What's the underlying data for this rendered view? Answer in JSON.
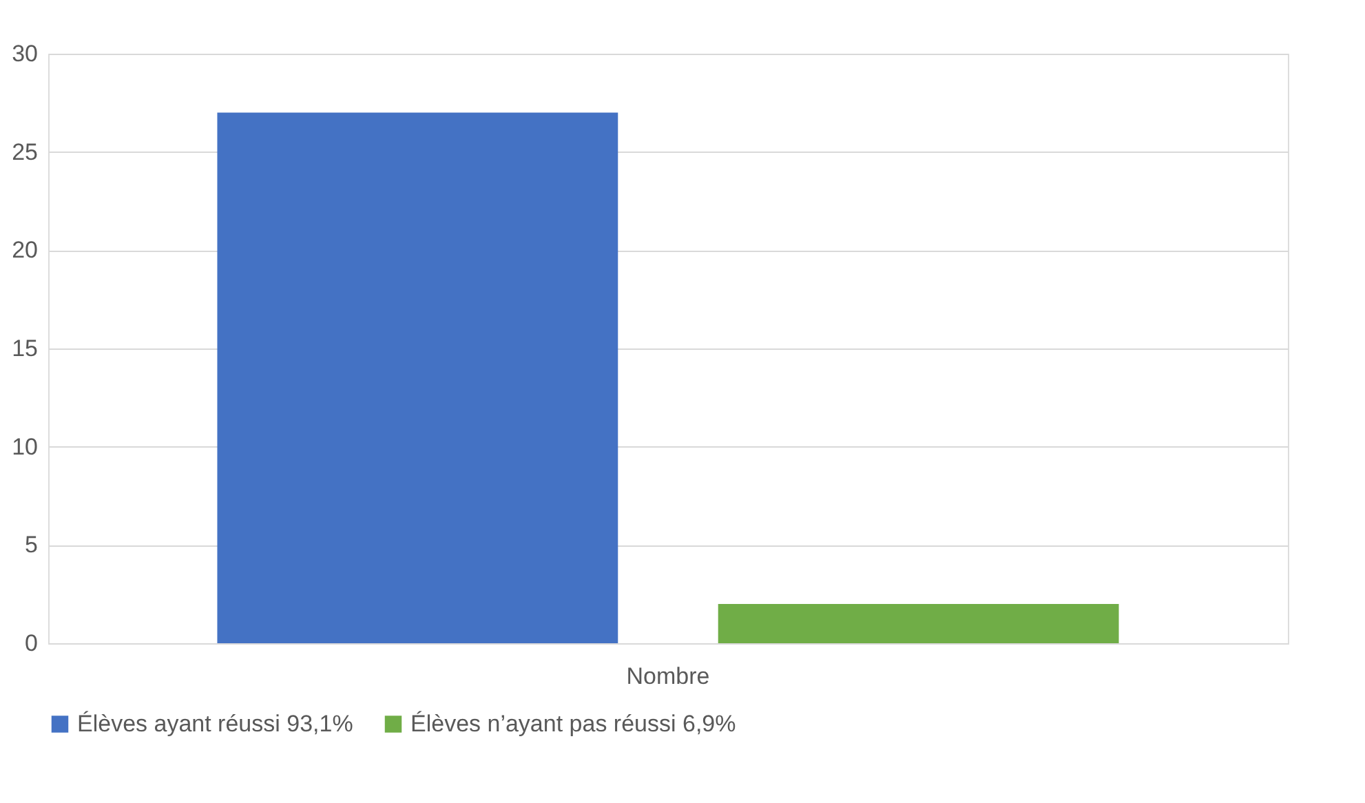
{
  "chart_data": {
    "type": "bar",
    "categories": [
      "Nombre"
    ],
    "series": [
      {
        "name": "Élèves ayant réussi 93,1%",
        "color": "#4472c4",
        "values": [
          27
        ]
      },
      {
        "name": "Élèves n’ayant pas réussi 6,9%",
        "color": "#70ad47",
        "values": [
          2
        ]
      }
    ],
    "ylim": [
      0,
      30
    ],
    "yticks": [
      0,
      5,
      10,
      15,
      20,
      25,
      30
    ],
    "grid": "y",
    "legend": "bottom"
  }
}
